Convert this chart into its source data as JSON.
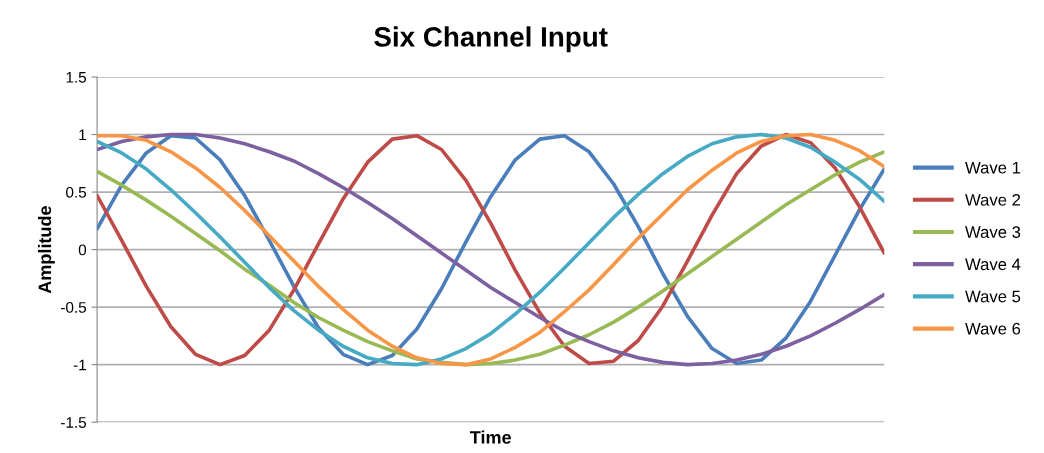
{
  "chart_data": {
    "type": "line",
    "title": "Six Channel Input",
    "xlabel": "Time",
    "ylabel": "Amplitude",
    "categories": [
      null,
      null,
      null,
      null,
      null,
      null,
      null,
      null,
      null,
      null,
      null,
      null,
      null,
      null,
      null,
      null,
      null,
      null,
      null,
      null,
      null,
      null,
      null,
      null,
      null,
      null,
      null,
      null,
      null,
      null,
      null,
      null,
      null
    ],
    "series": [
      {
        "name": "Wave 1",
        "color": "#4a7ebb",
        "values": [
          0.18,
          0.56,
          0.84,
          0.99,
          0.97,
          0.78,
          0.47,
          0.08,
          -0.32,
          -0.68,
          -0.91,
          -1.0,
          -0.92,
          -0.69,
          -0.34,
          0.07,
          0.46,
          0.78,
          0.96,
          0.99,
          0.85,
          0.57,
          0.2,
          -0.21,
          -0.58,
          -0.86,
          -0.99,
          -0.96,
          -0.77,
          -0.45,
          -0.05,
          0.35,
          0.7
        ]
      },
      {
        "name": "Wave 2",
        "color": "#be4b48",
        "values": [
          0.47,
          0.08,
          -0.32,
          -0.67,
          -0.91,
          -1.0,
          -0.92,
          -0.7,
          -0.35,
          0.05,
          0.44,
          0.76,
          0.96,
          0.99,
          0.87,
          0.6,
          0.23,
          -0.18,
          -0.55,
          -0.84,
          -0.99,
          -0.97,
          -0.79,
          -0.49,
          -0.1,
          0.3,
          0.66,
          0.9,
          1.0,
          0.93,
          0.71,
          0.37,
          -0.03
        ]
      },
      {
        "name": "Wave 3",
        "color": "#98b954",
        "values": [
          0.68,
          0.56,
          0.43,
          0.29,
          0.14,
          -0.01,
          -0.17,
          -0.31,
          -0.46,
          -0.59,
          -0.7,
          -0.8,
          -0.88,
          -0.95,
          -0.98,
          -1.0,
          -0.99,
          -0.96,
          -0.91,
          -0.83,
          -0.74,
          -0.63,
          -0.5,
          -0.36,
          -0.21,
          -0.06,
          0.09,
          0.24,
          0.39,
          0.52,
          0.65,
          0.76,
          0.85
        ]
      },
      {
        "name": "Wave 4",
        "color": "#7d60a0",
        "values": [
          0.87,
          0.94,
          0.98,
          1.0,
          1.0,
          0.97,
          0.92,
          0.85,
          0.77,
          0.66,
          0.54,
          0.41,
          0.27,
          0.12,
          -0.03,
          -0.18,
          -0.33,
          -0.46,
          -0.59,
          -0.71,
          -0.8,
          -0.88,
          -0.94,
          -0.98,
          -1.0,
          -0.99,
          -0.96,
          -0.91,
          -0.84,
          -0.75,
          -0.64,
          -0.52,
          -0.39
        ]
      },
      {
        "name": "Wave 5",
        "color": "#46aac5",
        "values": [
          0.94,
          0.84,
          0.7,
          0.52,
          0.32,
          0.11,
          -0.11,
          -0.33,
          -0.53,
          -0.7,
          -0.84,
          -0.94,
          -0.99,
          -1.0,
          -0.95,
          -0.86,
          -0.73,
          -0.56,
          -0.37,
          -0.16,
          0.06,
          0.28,
          0.48,
          0.66,
          0.81,
          0.92,
          0.98,
          1.0,
          0.97,
          0.89,
          0.76,
          0.61,
          0.42
        ]
      },
      {
        "name": "Wave 6",
        "color": "#f79646",
        "values": [
          0.99,
          0.99,
          0.95,
          0.85,
          0.71,
          0.54,
          0.34,
          0.12,
          -0.1,
          -0.32,
          -0.52,
          -0.7,
          -0.84,
          -0.94,
          -0.99,
          -1.0,
          -0.95,
          -0.85,
          -0.72,
          -0.54,
          -0.35,
          -0.13,
          0.1,
          0.31,
          0.52,
          0.69,
          0.84,
          0.94,
          0.99,
          1.0,
          0.95,
          0.86,
          0.72
        ]
      }
    ],
    "ylim": [
      -1.5,
      1.5
    ],
    "yticks": [
      -1.5,
      -1,
      -0.5,
      0,
      0.5,
      1,
      1.5
    ],
    "grid": "y",
    "legend": "right",
    "tick_labels": "y",
    "marker": "none",
    "line_style": "solid"
  }
}
